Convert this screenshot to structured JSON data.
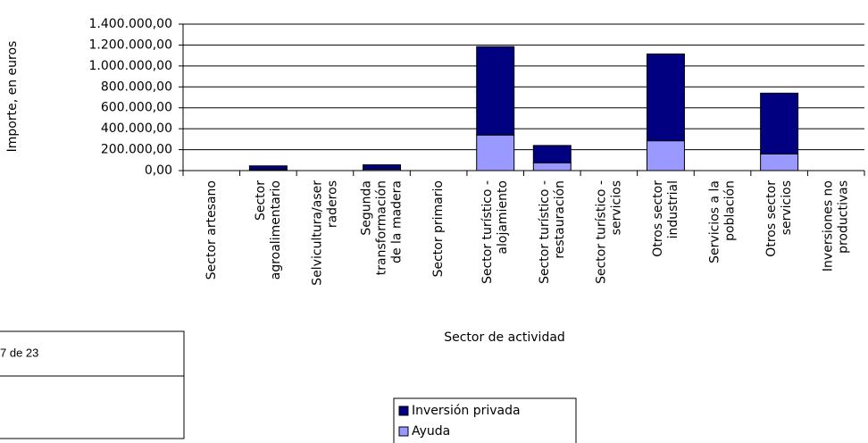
{
  "chart_data": {
    "type": "bar",
    "stacked": true,
    "y_label": "Importe, en euros",
    "x_label": "Sector de actividad",
    "categories": [
      "Sector artesano",
      "Sector\nagroalimentario",
      "Selvicultura/aser\nraderos",
      "Segunda\ntransformación\nde la madera",
      "Sector primario",
      "Sector turístico -\nalojamiento",
      "Sector turístico -\nrestauración",
      "Sector turístico -\nservicios",
      "Otros sector\nindustrial",
      "Servicios a la\npoblación",
      "Otros sector\nservicios",
      "Inversiones no\nproductivas"
    ],
    "series": [
      {
        "name": "Inversión privada",
        "color": "#000080",
        "values": [
          0,
          35000,
          0,
          43000,
          0,
          845000,
          165000,
          0,
          830000,
          0,
          580000,
          0
        ]
      },
      {
        "name": "Ayuda",
        "color": "#9999ff",
        "values": [
          0,
          10000,
          0,
          12000,
          0,
          340000,
          75000,
          0,
          285000,
          0,
          160000,
          0
        ]
      }
    ],
    "ylim": [
      0,
      1400000
    ],
    "yticks": [
      {
        "value": 0,
        "label": "0,00"
      },
      {
        "value": 200000,
        "label": "200.000,00"
      },
      {
        "value": 400000,
        "label": "400.000,00"
      },
      {
        "value": 600000,
        "label": "600.000,00"
      },
      {
        "value": 800000,
        "label": "800.000,00"
      },
      {
        "value": 1000000,
        "label": "1.000.000,00"
      },
      {
        "value": 1200000,
        "label": "1.200.000,00"
      },
      {
        "value": 1400000,
        "label": "1.400.000,00"
      }
    ],
    "grid": true,
    "legend": "bottom"
  },
  "page_footer": {
    "text": "7 de 23"
  }
}
